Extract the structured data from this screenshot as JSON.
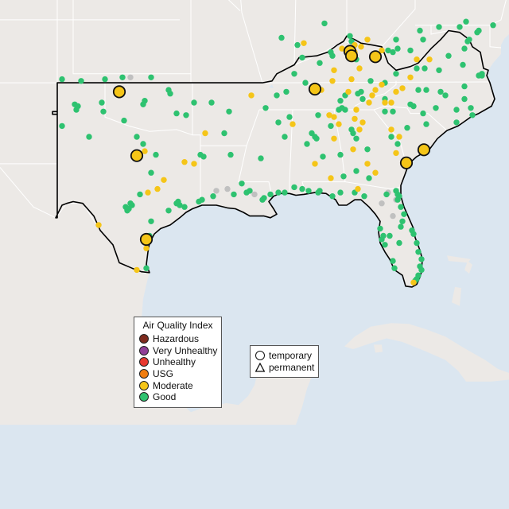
{
  "map": {
    "land_color": "#ece9e6",
    "water_color": "#dbe6f0",
    "state_line_color": "#ffffff",
    "region_outline_color": "#000000"
  },
  "legend_aqi": {
    "title": "Air Quality Index",
    "items": [
      {
        "label": "Hazardous",
        "color": "#7e2b1e"
      },
      {
        "label": "Very Unhealthy",
        "color": "#8f3f97"
      },
      {
        "label": "Unhealthy",
        "color": "#e8382f"
      },
      {
        "label": "USG",
        "color": "#f07d0f"
      },
      {
        "label": "Moderate",
        "color": "#f5c518"
      },
      {
        "label": "Good",
        "color": "#2ec270"
      }
    ]
  },
  "legend_type": {
    "items": [
      {
        "label": "temporary",
        "shape": "circle"
      },
      {
        "label": "permanent",
        "shape": "triangle"
      }
    ]
  },
  "monitors": {
    "colors": {
      "good": "#2ec270",
      "moderate": "#f5c518",
      "unavailable": "#c0c0c0"
    },
    "temporary_moderate": [
      [
        -99.1,
        36.0
      ],
      [
        -98.0,
        32.45
      ],
      [
        -97.4,
        27.8
      ],
      [
        -84.6,
        38.25
      ],
      [
        -84.5,
        38.0
      ],
      [
        -83.0,
        37.95
      ],
      [
        -86.8,
        36.15
      ],
      [
        -79.95,
        32.78
      ],
      [
        -81.05,
        32.05
      ]
    ],
    "permanent": [
      {
        "aqi": "good",
        "pts": [
          [
            -102.7,
            36.7
          ],
          [
            -101.5,
            36.6
          ],
          [
            -100.0,
            36.7
          ],
          [
            -98.9,
            36.8
          ],
          [
            -101.7,
            35.2
          ],
          [
            -101.8,
            35.0
          ],
          [
            -101.9,
            35.3
          ],
          [
            -100.2,
            35.4
          ],
          [
            -100.1,
            34.9
          ],
          [
            -102.7,
            34.1
          ],
          [
            -101.0,
            33.5
          ],
          [
            -98.8,
            34.4
          ],
          [
            -98.0,
            33.5
          ],
          [
            -97.6,
            33.1
          ],
          [
            -97.1,
            36.8
          ],
          [
            -97.6,
            35.3
          ],
          [
            -97.5,
            35.5
          ],
          [
            -96.0,
            36.1
          ],
          [
            -95.9,
            35.9
          ],
          [
            -95.5,
            34.8
          ],
          [
            -94.9,
            34.7
          ],
          [
            -94.4,
            35.4
          ],
          [
            -93.3,
            35.4
          ],
          [
            -92.2,
            34.9
          ],
          [
            -92.5,
            33.7
          ],
          [
            -94.0,
            32.5
          ],
          [
            -93.8,
            32.4
          ],
          [
            -92.1,
            32.5
          ],
          [
            -96.8,
            32.5
          ],
          [
            -97.1,
            31.5
          ],
          [
            -97.8,
            30.3
          ],
          [
            -98.5,
            29.5
          ],
          [
            -98.6,
            29.4
          ],
          [
            -98.7,
            29.6
          ],
          [
            -98.3,
            29.7
          ],
          [
            -98.4,
            29.8
          ],
          [
            -97.1,
            28.8
          ],
          [
            -97.2,
            28.0
          ],
          [
            -97.5,
            27.7
          ],
          [
            -97.4,
            26.2
          ],
          [
            -96.0,
            29.4
          ],
          [
            -95.5,
            29.8
          ],
          [
            -95.3,
            29.7
          ],
          [
            -95.4,
            29.9
          ],
          [
            -95.0,
            29.6
          ],
          [
            -94.1,
            29.9
          ],
          [
            -93.9,
            30.0
          ],
          [
            -93.2,
            30.2
          ],
          [
            -91.9,
            30.3
          ],
          [
            -91.1,
            30.4
          ],
          [
            -90.9,
            30.5
          ],
          [
            -91.4,
            30.9
          ],
          [
            -90.1,
            30.0
          ],
          [
            -90.0,
            30.1
          ],
          [
            -89.6,
            30.3
          ],
          [
            -89.1,
            30.4
          ],
          [
            -88.7,
            30.4
          ],
          [
            -88.1,
            30.7
          ],
          [
            -87.6,
            30.6
          ],
          [
            -87.2,
            30.5
          ],
          [
            -86.6,
            30.4
          ],
          [
            -86.5,
            30.5
          ],
          [
            -85.7,
            30.2
          ],
          [
            -85.2,
            30.4
          ],
          [
            -84.3,
            30.4
          ],
          [
            -83.7,
            30.2
          ],
          [
            -82.3,
            30.3
          ],
          [
            -81.7,
            30.5
          ],
          [
            -81.6,
            30.3
          ],
          [
            -81.5,
            30.2
          ],
          [
            -81.6,
            30.0
          ],
          [
            -81.4,
            29.6
          ],
          [
            -81.2,
            29.2
          ],
          [
            -81.3,
            28.8
          ],
          [
            -81.4,
            28.5
          ],
          [
            -82.5,
            28.0
          ],
          [
            -82.6,
            27.8
          ],
          [
            -82.4,
            27.5
          ],
          [
            -82.7,
            28.4
          ],
          [
            -80.7,
            28.3
          ],
          [
            -80.6,
            28.1
          ],
          [
            -80.4,
            27.6
          ],
          [
            -80.3,
            27.1
          ],
          [
            -80.1,
            26.7
          ],
          [
            -80.2,
            26.3
          ],
          [
            -80.1,
            26.1
          ],
          [
            -80.3,
            25.8
          ],
          [
            -80.4,
            25.6
          ],
          [
            -81.8,
            26.2
          ],
          [
            -81.9,
            26.6
          ],
          [
            -80.5,
            25.5
          ],
          [
            -89.9,
            35.1
          ],
          [
            -88.6,
            36.0
          ],
          [
            -88.4,
            34.6
          ],
          [
            -89.1,
            34.3
          ],
          [
            -90.2,
            32.3
          ],
          [
            -88.7,
            33.5
          ],
          [
            -86.8,
            33.5
          ],
          [
            -86.7,
            33.4
          ],
          [
            -87.0,
            33.7
          ],
          [
            -87.3,
            33.1
          ],
          [
            -86.6,
            34.7
          ],
          [
            -85.8,
            34.1
          ],
          [
            -86.3,
            32.4
          ],
          [
            -85.2,
            32.5
          ],
          [
            -85.0,
            31.3
          ],
          [
            -84.4,
            33.7
          ],
          [
            -84.5,
            33.9
          ],
          [
            -84.2,
            33.4
          ],
          [
            -83.5,
            32.8
          ],
          [
            -82.0,
            33.5
          ],
          [
            -81.6,
            33.1
          ],
          [
            -81.0,
            32.1
          ],
          [
            -83.4,
            31.2
          ],
          [
            -84.2,
            31.6
          ],
          [
            -81.0,
            34.0
          ],
          [
            -80.0,
            34.8
          ],
          [
            -79.8,
            34.2
          ],
          [
            -81.9,
            34.9
          ],
          [
            -82.4,
            34.9
          ],
          [
            -82.4,
            35.6
          ],
          [
            -80.6,
            35.2
          ],
          [
            -80.8,
            35.3
          ],
          [
            -79.2,
            35.1
          ],
          [
            -78.6,
            35.8
          ],
          [
            -78.9,
            36.0
          ],
          [
            -79.8,
            36.1
          ],
          [
            -80.3,
            36.1
          ],
          [
            -77.9,
            35.0
          ],
          [
            -77.4,
            35.6
          ],
          [
            -77.0,
            35.1
          ],
          [
            -76.9,
            34.7
          ],
          [
            -77.9,
            34.3
          ],
          [
            -77.4,
            36.3
          ],
          [
            -76.3,
            36.9
          ],
          [
            -76.5,
            36.9
          ],
          [
            -76.3,
            37.0
          ],
          [
            -77.5,
            37.5
          ],
          [
            -77.4,
            38.4
          ],
          [
            -77.1,
            38.9
          ],
          [
            -77.2,
            38.8
          ],
          [
            -76.6,
            39.3
          ],
          [
            -76.5,
            39.4
          ],
          [
            -75.6,
            39.7
          ],
          [
            -78.4,
            38.0
          ],
          [
            -79.0,
            37.2
          ],
          [
            -79.9,
            37.3
          ],
          [
            -80.4,
            37.3
          ],
          [
            -80.8,
            38.3
          ],
          [
            -81.6,
            38.4
          ],
          [
            -81.9,
            38.2
          ],
          [
            -80.0,
            38.9
          ],
          [
            -80.2,
            39.4
          ],
          [
            -79.0,
            39.6
          ],
          [
            -77.3,
            39.9
          ],
          [
            -77.7,
            39.6
          ],
          [
            -81.7,
            37.0
          ],
          [
            -82.4,
            36.5
          ],
          [
            -83.3,
            36.6
          ],
          [
            -83.9,
            36.0
          ],
          [
            -84.1,
            35.9
          ],
          [
            -83.8,
            35.6
          ],
          [
            -84.9,
            35.0
          ],
          [
            -85.3,
            35.0
          ],
          [
            -85.1,
            35.1
          ],
          [
            -86.6,
            36.2
          ],
          [
            -87.4,
            36.5
          ],
          [
            -88.1,
            37.0
          ],
          [
            -87.6,
            37.9
          ],
          [
            -86.5,
            37.6
          ],
          [
            -85.8,
            38.2
          ],
          [
            -85.7,
            38.0
          ],
          [
            -84.5,
            38.8
          ],
          [
            -84.2,
            37.8
          ],
          [
            -82.2,
            38.3
          ],
          [
            -81.7,
            38.9
          ],
          [
            -84.6,
            39.1
          ],
          [
            -86.2,
            39.8
          ],
          [
            -87.9,
            38.6
          ],
          [
            -88.9,
            39.0
          ],
          [
            -89.2,
            35.8
          ],
          [
            -82.1,
            28.0
          ],
          [
            -81.5,
            27.6
          ],
          [
            -84.9,
            35.8
          ],
          [
            -85.2,
            35.5
          ]
        ]
      },
      {
        "aqi": "moderate",
        "pts": [
          [
            -98.0,
            26.1
          ],
          [
            -97.4,
            27.3
          ],
          [
            -100.4,
            28.6
          ],
          [
            -96.7,
            30.6
          ],
          [
            -97.3,
            30.4
          ],
          [
            -97.5,
            32.7
          ],
          [
            -96.3,
            31.1
          ],
          [
            -95.0,
            32.1
          ],
          [
            -94.4,
            32.0
          ],
          [
            -93.7,
            33.7
          ],
          [
            -90.8,
            35.8
          ],
          [
            -88.2,
            34.2
          ],
          [
            -85.6,
            33.4
          ],
          [
            -84.4,
            32.8
          ],
          [
            -83.5,
            32.0
          ],
          [
            -83.0,
            31.5
          ],
          [
            -85.8,
            31.2
          ],
          [
            -84.1,
            30.6
          ],
          [
            -84.2,
            35.0
          ],
          [
            -83.4,
            35.4
          ],
          [
            -83.2,
            35.8
          ],
          [
            -83.0,
            36.1
          ],
          [
            -82.6,
            36.4
          ],
          [
            -82.4,
            35.4
          ],
          [
            -82.0,
            35.4
          ],
          [
            -81.7,
            36.0
          ],
          [
            -81.3,
            36.2
          ],
          [
            -80.8,
            36.8
          ],
          [
            -80.4,
            37.8
          ],
          [
            -79.6,
            37.8
          ],
          [
            -85.6,
            37.2
          ],
          [
            -86.4,
            36.1
          ],
          [
            -86.7,
            36.0
          ],
          [
            -85.7,
            36.6
          ],
          [
            -84.5,
            36.7
          ],
          [
            -84.7,
            36.0
          ],
          [
            -84.0,
            37.3
          ],
          [
            -84.3,
            38.6
          ],
          [
            -84.3,
            38.2
          ],
          [
            -83.9,
            38.5
          ],
          [
            -82.6,
            38.3
          ],
          [
            -85.1,
            38.4
          ],
          [
            -87.5,
            38.7
          ],
          [
            -83.5,
            38.9
          ],
          [
            -81.5,
            33.5
          ],
          [
            -84.0,
            33.9
          ],
          [
            -84.3,
            34.5
          ],
          [
            -82.0,
            33.9
          ],
          [
            -81.7,
            32.6
          ],
          [
            -83.8,
            34.3
          ],
          [
            -85.6,
            34.6
          ],
          [
            -85.3,
            34.2
          ],
          [
            -85.9,
            34.7
          ],
          [
            -86.8,
            32.0
          ],
          [
            -80.6,
            25.4
          ]
        ]
      },
      {
        "aqi": "unavailable",
        "pts": [
          [
            -98.4,
            36.8
          ],
          [
            -93.0,
            30.5
          ],
          [
            -92.3,
            30.6
          ],
          [
            -90.6,
            30.3
          ],
          [
            -82.2,
            30.4
          ],
          [
            -81.9,
            29.1
          ],
          [
            -82.6,
            29.8
          ],
          [
            -81.7,
            30.0
          ]
        ]
      }
    ]
  }
}
